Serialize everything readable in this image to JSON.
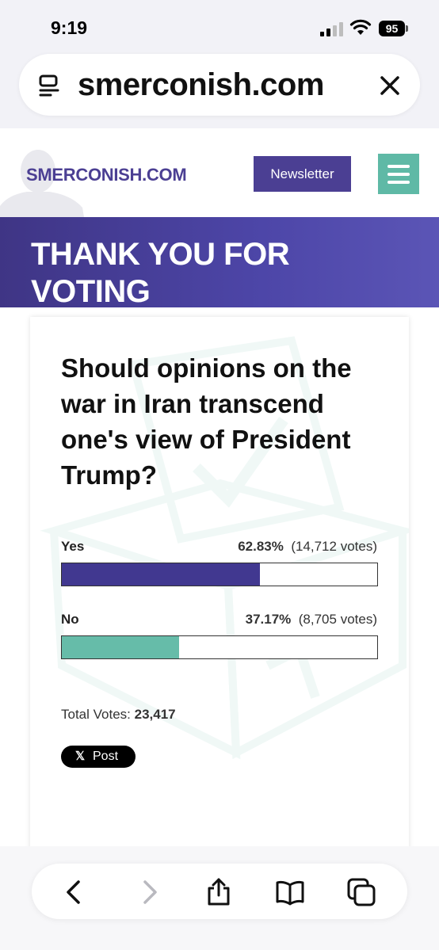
{
  "status_bar": {
    "time": "9:19",
    "battery": "95"
  },
  "browser": {
    "url": "smerconish.com"
  },
  "site_header": {
    "logo": "SMERCONISH.COM",
    "newsletter_label": "Newsletter"
  },
  "banner": {
    "title": "THANK YOU FOR VOTING"
  },
  "poll": {
    "question": "Should opinions on the war in Iran transcend one's view of President Trump?",
    "options": [
      {
        "label": "Yes",
        "percent": "62.83%",
        "votes": "(14,712 votes)",
        "fraction": 0.6283,
        "color": "#413890"
      },
      {
        "label": "No",
        "percent": "37.17%",
        "votes": "(8,705 votes)",
        "fraction": 0.3717,
        "color": "#66bca9"
      }
    ],
    "total_label": "Total Votes:",
    "total_value": "23,417",
    "share_label": "Post",
    "share_logo": "𝕏"
  },
  "colors": {
    "brand_purple": "#4b3f93",
    "brand_teal": "#5fb9a6"
  },
  "toolbar": {
    "icons": [
      "back-icon",
      "forward-icon",
      "share-icon",
      "bookmarks-icon",
      "tabs-icon"
    ]
  }
}
